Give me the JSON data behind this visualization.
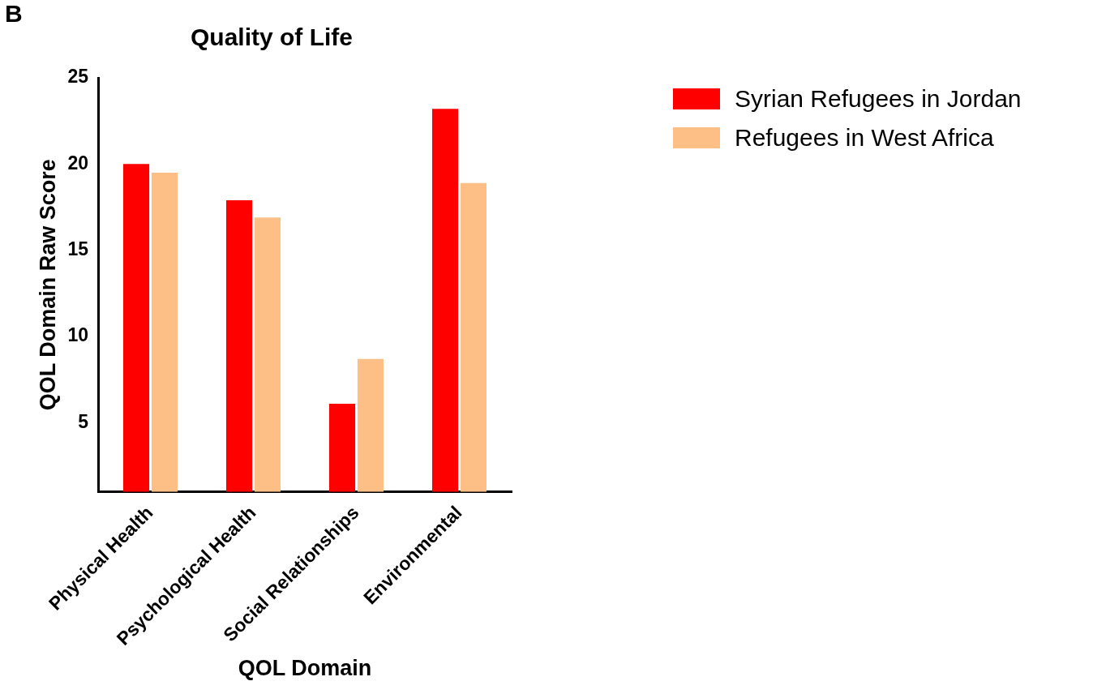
{
  "chart_data": {
    "type": "bar",
    "title": "Quality of Life",
    "xlabel": "QOL Domain",
    "ylabel": "QOL Domain Raw Score",
    "categories": [
      "Physical Health",
      "Psychological Health",
      "Social Relationships",
      "Environmental"
    ],
    "series": [
      {
        "name": "Syrian Refugees in Jordan",
        "color": "#ff0000",
        "values": [
          20.0,
          17.9,
          6.1,
          23.2
        ]
      },
      {
        "name": "Refugees in West Africa",
        "color": "#fdbf86",
        "values": [
          19.5,
          16.9,
          8.7,
          18.9
        ]
      }
    ],
    "ylim": [
      1,
      25
    ],
    "yticks": [
      5,
      10,
      15,
      20,
      25
    ],
    "grid": false,
    "legend": "right",
    "annotations": [
      "B"
    ]
  }
}
